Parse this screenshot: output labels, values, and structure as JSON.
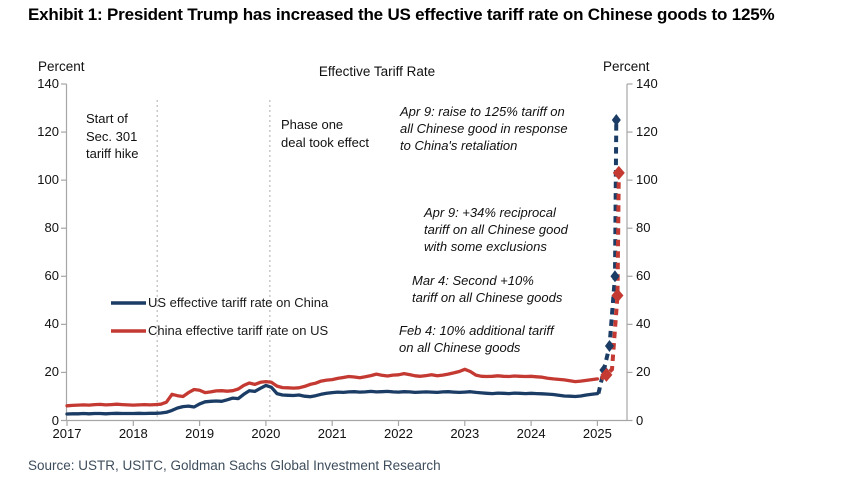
{
  "title": "Exhibit 1: President Trump has increased the US effective tariff rate on Chinese goods to 125%",
  "source": "Source: USTR, USITC, Goldman Sachs Global Investment Research",
  "chart_data": {
    "type": "line",
    "title": "Effective Tariff Rate",
    "ylabel_left": "Percent",
    "ylabel_right": "Percent",
    "ylim": [
      0,
      140
    ],
    "yticks": [
      0,
      20,
      40,
      60,
      80,
      100,
      120,
      140
    ],
    "xticks": [
      2017,
      2018,
      2019,
      2020,
      2021,
      2022,
      2023,
      2024,
      2025
    ],
    "grid": false,
    "legend_position": "center-left",
    "dashed_from_x": 2025.0,
    "x": [
      2017.0,
      2017.083,
      2017.167,
      2017.25,
      2017.333,
      2017.417,
      2017.5,
      2017.583,
      2017.667,
      2017.75,
      2017.833,
      2017.917,
      2018.0,
      2018.083,
      2018.167,
      2018.25,
      2018.333,
      2018.417,
      2018.5,
      2018.583,
      2018.667,
      2018.75,
      2018.833,
      2018.917,
      2019.0,
      2019.083,
      2019.167,
      2019.25,
      2019.333,
      2019.417,
      2019.5,
      2019.583,
      2019.667,
      2019.75,
      2019.833,
      2019.917,
      2020.0,
      2020.083,
      2020.167,
      2020.25,
      2020.333,
      2020.417,
      2020.5,
      2020.583,
      2020.667,
      2020.75,
      2020.833,
      2020.917,
      2021.0,
      2021.083,
      2021.167,
      2021.25,
      2021.333,
      2021.417,
      2021.5,
      2021.583,
      2021.667,
      2021.75,
      2021.833,
      2021.917,
      2022.0,
      2022.083,
      2022.167,
      2022.25,
      2022.333,
      2022.417,
      2022.5,
      2022.583,
      2022.667,
      2022.75,
      2022.833,
      2022.917,
      2023.0,
      2023.083,
      2023.167,
      2023.25,
      2023.333,
      2023.417,
      2023.5,
      2023.583,
      2023.667,
      2023.75,
      2023.833,
      2023.917,
      2024.0,
      2024.083,
      2024.167,
      2024.25,
      2024.333,
      2024.417,
      2024.5,
      2024.583,
      2024.667,
      2024.75,
      2024.833,
      2024.917,
      2025.0,
      2025.083,
      2025.167,
      2025.25,
      2025.27
    ],
    "series": [
      {
        "name": "US effective tariff rate on China",
        "color": "#1b3c64",
        "values": [
          2.7,
          2.8,
          2.8,
          2.9,
          2.8,
          2.9,
          2.9,
          2.8,
          2.9,
          3.0,
          2.9,
          2.9,
          2.9,
          3.0,
          2.9,
          3.0,
          3.0,
          3.1,
          3.4,
          4.2,
          5.2,
          5.8,
          6.0,
          5.6,
          6.9,
          7.8,
          8.0,
          8.1,
          8.0,
          8.6,
          9.3,
          9.1,
          10.9,
          12.4,
          12.1,
          13.4,
          14.6,
          13.8,
          11.2,
          10.6,
          10.5,
          10.4,
          10.6,
          10.1,
          9.9,
          10.3,
          10.9,
          11.3,
          11.6,
          11.8,
          11.7,
          11.9,
          12.0,
          11.8,
          11.9,
          12.1,
          11.9,
          12.0,
          12.1,
          11.9,
          11.8,
          12.0,
          11.9,
          11.7,
          11.8,
          11.9,
          11.8,
          11.7,
          11.9,
          12.0,
          11.8,
          11.7,
          11.8,
          12.0,
          11.7,
          11.5,
          11.3,
          11.2,
          11.4,
          11.3,
          11.2,
          11.4,
          11.3,
          11.2,
          11.3,
          11.2,
          11.1,
          11.0,
          10.8,
          10.5,
          10.2,
          10.1,
          10.0,
          10.2,
          10.6,
          10.9,
          11.2,
          21.0,
          31.0,
          60.0,
          125.0
        ],
        "markers": [
          [
            2025.083,
            21
          ],
          [
            2025.167,
            31
          ],
          [
            2025.25,
            60
          ],
          [
            2025.27,
            125
          ]
        ]
      },
      {
        "name": "China effective tariff rate on US",
        "color": "#c43a32",
        "values": [
          6.1,
          6.3,
          6.4,
          6.5,
          6.4,
          6.6,
          6.7,
          6.5,
          6.6,
          6.8,
          6.6,
          6.5,
          6.4,
          6.5,
          6.6,
          6.5,
          6.6,
          6.8,
          7.6,
          10.9,
          10.3,
          10.0,
          11.6,
          12.9,
          12.6,
          11.6,
          11.9,
          12.3,
          12.4,
          12.2,
          12.4,
          13.1,
          14.6,
          15.6,
          15.0,
          15.9,
          16.2,
          15.9,
          14.3,
          13.7,
          13.6,
          13.5,
          13.6,
          14.2,
          15.0,
          15.5,
          16.4,
          16.8,
          17.0,
          17.5,
          17.9,
          18.3,
          18.1,
          17.8,
          18.2,
          18.7,
          19.3,
          18.8,
          18.5,
          18.9,
          19.0,
          19.5,
          19.1,
          18.6,
          18.4,
          18.7,
          19.0,
          18.6,
          18.9,
          19.3,
          19.8,
          20.4,
          21.3,
          20.4,
          18.9,
          18.4,
          18.3,
          18.4,
          18.6,
          18.4,
          18.3,
          18.5,
          18.4,
          18.3,
          18.4,
          18.2,
          18.0,
          17.6,
          17.3,
          17.1,
          16.9,
          16.5,
          16.2,
          16.4,
          16.7,
          17.0,
          17.3,
          19.0,
          21.3,
          52.0,
          103.0
        ],
        "markers": [
          [
            2025.083,
            19
          ],
          [
            2025.25,
            52
          ],
          [
            2025.27,
            103
          ]
        ]
      }
    ],
    "event_lines": [
      {
        "x": 2018.36,
        "label": "Start of\nSec. 301\ntariff hike"
      },
      {
        "x": 2020.06,
        "label": "Phase one\ndeal took effect"
      }
    ],
    "annotations": [
      {
        "text": "Apr 9: raise to 125% tariff on\nall Chinese good in response\nto China's retaliation"
      },
      {
        "text": "Apr 9: +34% reciprocal\ntariff on all Chinese good\nwith some exclusions"
      },
      {
        "text": "Mar 4: Second +10%\ntariff on all Chinese goods"
      },
      {
        "text": "Feb 4: 10% additional tariff\non all Chinese goods"
      }
    ]
  }
}
